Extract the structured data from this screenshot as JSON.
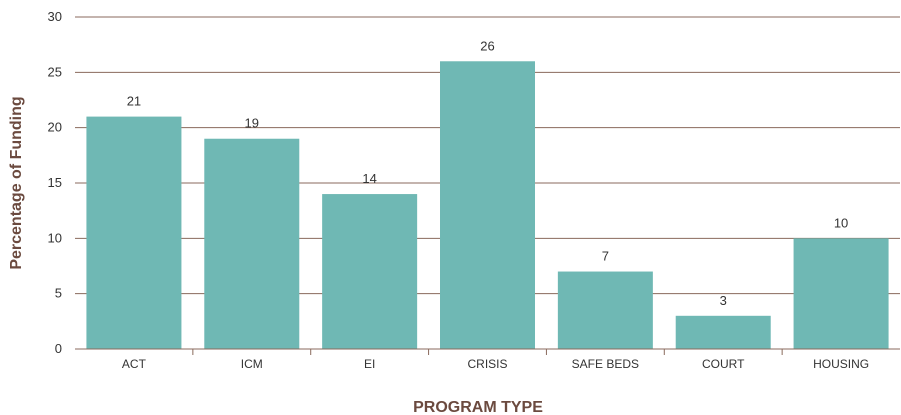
{
  "chart_data": {
    "type": "bar",
    "categories": [
      "ACT",
      "ICM",
      "EI",
      "CRISIS",
      "SAFE BEDS",
      "COURT",
      "HOUSING"
    ],
    "values": [
      21,
      19,
      14,
      26,
      7,
      3,
      10
    ],
    "data_labels": [
      "21",
      "19",
      "14",
      "26",
      "7",
      "3",
      "10"
    ],
    "xlabel": "PROGRAM TYPE",
    "ylabel": "Percentage of Funding",
    "ylim": [
      0,
      30
    ],
    "yticks": [
      "0",
      "5",
      "10",
      "15",
      "20",
      "25",
      "30"
    ],
    "grid": true,
    "legend": "none",
    "colors": {
      "bar": "#6fb8b4",
      "axis_title": "#6b4a3f",
      "grid": "#8a6a5c"
    }
  }
}
